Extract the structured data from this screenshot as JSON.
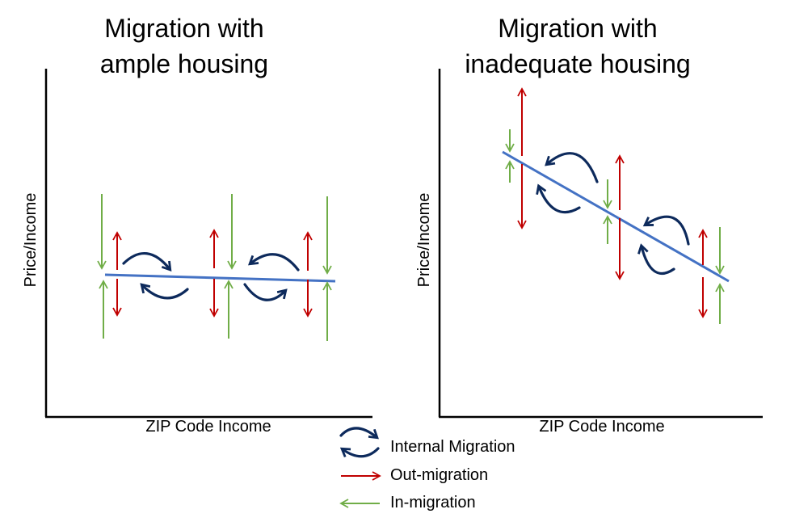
{
  "colors": {
    "out_migration": "#c00000",
    "in_migration": "#70ad47",
    "internal_migration": "#0d2a5c",
    "trend_line": "#4472c4",
    "axis": "#000000"
  },
  "left_panel": {
    "title_line1": "Migration with",
    "title_line2": "ample housing",
    "ylabel": "Price/Income",
    "xlabel": "ZIP Code Income"
  },
  "right_panel": {
    "title_line1": "Migration with",
    "title_line2": "inadequate housing",
    "ylabel": "Price/Income",
    "xlabel": "ZIP Code Income"
  },
  "legend": {
    "internal": "Internal Migration",
    "out": "Out-migration",
    "in": "In-migration"
  }
}
